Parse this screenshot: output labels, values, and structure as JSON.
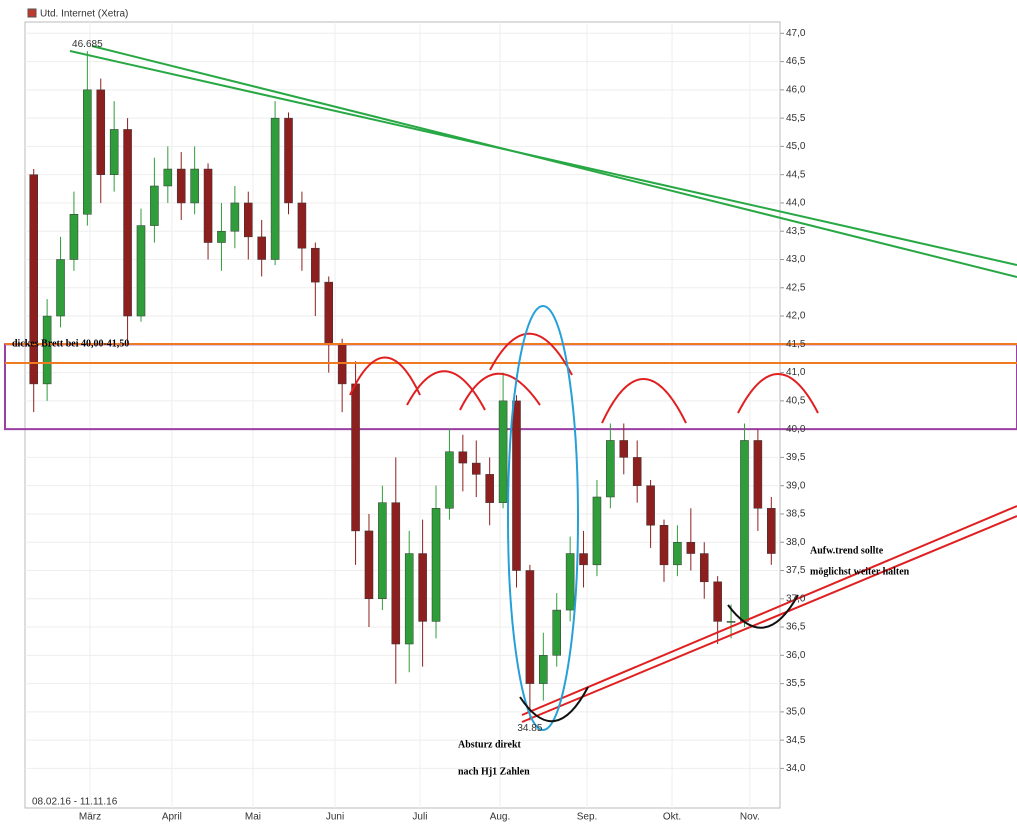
{
  "chart_data": {
    "type": "candlestick",
    "title": "Utd. Internet (Xetra)",
    "date_range": "08.02.16 - 11.11.16",
    "open": [
      44.5,
      40.8,
      42.0,
      43.0,
      43.8,
      46.0,
      44.5,
      45.3,
      42.0,
      43.6,
      44.3,
      44.6,
      44.0,
      44.6,
      43.3,
      43.5,
      44.0,
      43.4,
      43.0,
      45.5,
      44.0,
      43.2,
      42.6,
      41.5,
      40.8,
      38.2,
      37.0,
      38.7,
      36.2,
      37.8,
      36.6,
      38.6,
      39.6,
      39.4,
      39.2,
      38.7,
      40.5,
      37.5,
      35.5,
      36.0,
      36.8,
      37.8,
      37.6,
      38.8,
      39.8,
      39.5,
      39.0,
      38.3,
      37.6,
      38.0,
      37.8,
      37.3,
      36.6,
      36.6,
      39.8,
      38.6
    ],
    "high": [
      44.6,
      42.3,
      43.4,
      44.2,
      46.685,
      46.2,
      45.8,
      45.5,
      43.9,
      44.8,
      45.0,
      44.9,
      45.0,
      44.7,
      44.0,
      44.3,
      44.2,
      43.7,
      45.8,
      45.6,
      44.2,
      43.3,
      42.7,
      41.6,
      41.2,
      38.5,
      39.0,
      39.5,
      38.2,
      38.4,
      39.0,
      40.0,
      39.9,
      39.8,
      39.5,
      41.0,
      40.6,
      37.6,
      36.4,
      37.1,
      38.1,
      38.2,
      39.1,
      40.1,
      40.1,
      39.8,
      39.1,
      38.4,
      38.3,
      38.6,
      38.0,
      37.4,
      36.9,
      40.1,
      40.0,
      38.8
    ],
    "low": [
      40.3,
      40.5,
      41.8,
      42.8,
      43.6,
      44.0,
      44.2,
      41.5,
      41.9,
      43.3,
      44.0,
      43.7,
      43.8,
      43.0,
      42.8,
      43.2,
      43.0,
      42.7,
      42.9,
      43.8,
      42.8,
      42.0,
      41.0,
      40.3,
      37.6,
      36.5,
      36.8,
      35.5,
      35.7,
      35.8,
      36.3,
      38.4,
      38.9,
      38.8,
      38.3,
      38.6,
      37.2,
      34.85,
      35.2,
      35.8,
      36.6,
      37.2,
      37.4,
      38.6,
      39.2,
      38.7,
      37.9,
      37.3,
      37.4,
      37.5,
      37.0,
      36.2,
      36.3,
      36.5,
      38.2,
      37.6
    ],
    "close": [
      40.8,
      42.0,
      43.0,
      43.8,
      46.0,
      44.5,
      45.3,
      42.0,
      43.6,
      44.3,
      44.6,
      44.0,
      44.6,
      43.3,
      43.5,
      44.0,
      43.4,
      43.0,
      45.5,
      44.0,
      43.2,
      42.6,
      41.5,
      40.8,
      38.2,
      37.0,
      38.7,
      36.2,
      37.8,
      36.6,
      38.6,
      39.6,
      39.4,
      39.2,
      38.7,
      40.5,
      37.5,
      35.5,
      36.0,
      36.8,
      37.8,
      37.6,
      38.8,
      39.8,
      39.5,
      39.0,
      38.3,
      37.6,
      38.0,
      37.8,
      37.3,
      36.6,
      36.6,
      39.8,
      38.6,
      37.8
    ],
    "up_color": "#2f9e3a",
    "down_color": "#8e1f1f",
    "ylim": [
      33.3,
      47.2
    ],
    "yticks": [
      {
        "value": 34,
        "label": "34,0"
      },
      {
        "value": 34.5,
        "label": "34,5"
      },
      {
        "value": 35,
        "label": "35,0"
      },
      {
        "value": 35.5,
        "label": "35,5"
      },
      {
        "value": 36,
        "label": "36,0"
      },
      {
        "value": 36.5,
        "label": "36,5"
      },
      {
        "value": 37,
        "label": "37,0"
      },
      {
        "value": 37.5,
        "label": "37,5"
      },
      {
        "value": 38,
        "label": "38,0"
      },
      {
        "value": 38.5,
        "label": "38,5"
      },
      {
        "value": 39,
        "label": "39,0"
      },
      {
        "value": 39.5,
        "label": "39,5"
      },
      {
        "value": 40,
        "label": "40,0"
      },
      {
        "value": 40.5,
        "label": "40,5"
      },
      {
        "value": 41,
        "label": "41,0"
      },
      {
        "value": 41.5,
        "label": "41,5"
      },
      {
        "value": 42,
        "label": "42,0"
      },
      {
        "value": 42.5,
        "label": "42,5"
      },
      {
        "value": 43,
        "label": "43,0"
      },
      {
        "value": 43.5,
        "label": "43,5"
      },
      {
        "value": 44,
        "label": "44,0"
      },
      {
        "value": 44.5,
        "label": "44,5"
      },
      {
        "value": 45,
        "label": "45,0"
      },
      {
        "value": 45.5,
        "label": "45,5"
      },
      {
        "value": 46,
        "label": "46,0"
      },
      {
        "value": 46.5,
        "label": "46,5"
      },
      {
        "value": 47,
        "label": "47,0"
      }
    ],
    "xlim": [
      0,
      56
    ],
    "xticks": [
      {
        "value": 4.7,
        "label": "März"
      },
      {
        "value": 10.8,
        "label": "April"
      },
      {
        "value": 16.85,
        "label": "Mai"
      },
      {
        "value": 22.97,
        "label": "Juni"
      },
      {
        "value": 29.3,
        "label": "Juli"
      },
      {
        "value": 35.27,
        "label": "Aug."
      },
      {
        "value": 41.76,
        "label": "Sep."
      },
      {
        "value": 48.1,
        "label": "Okt."
      },
      {
        "value": 53.9,
        "label": "Nov."
      }
    ],
    "grid": true,
    "extremes": [
      {
        "value": 46.685,
        "label": "46.685"
      },
      {
        "value": 34.85,
        "label": "34.85"
      }
    ],
    "zone": [
      40.0,
      41.5
    ],
    "zone_color": "#9b3fa3",
    "annotations": [
      "dickes Brett bei 40,00-41,50",
      "Absturz direkt",
      "nach Hj1 Zahlen",
      "Aufw.trend sollte",
      "möglichst weiter halten"
    ]
  }
}
